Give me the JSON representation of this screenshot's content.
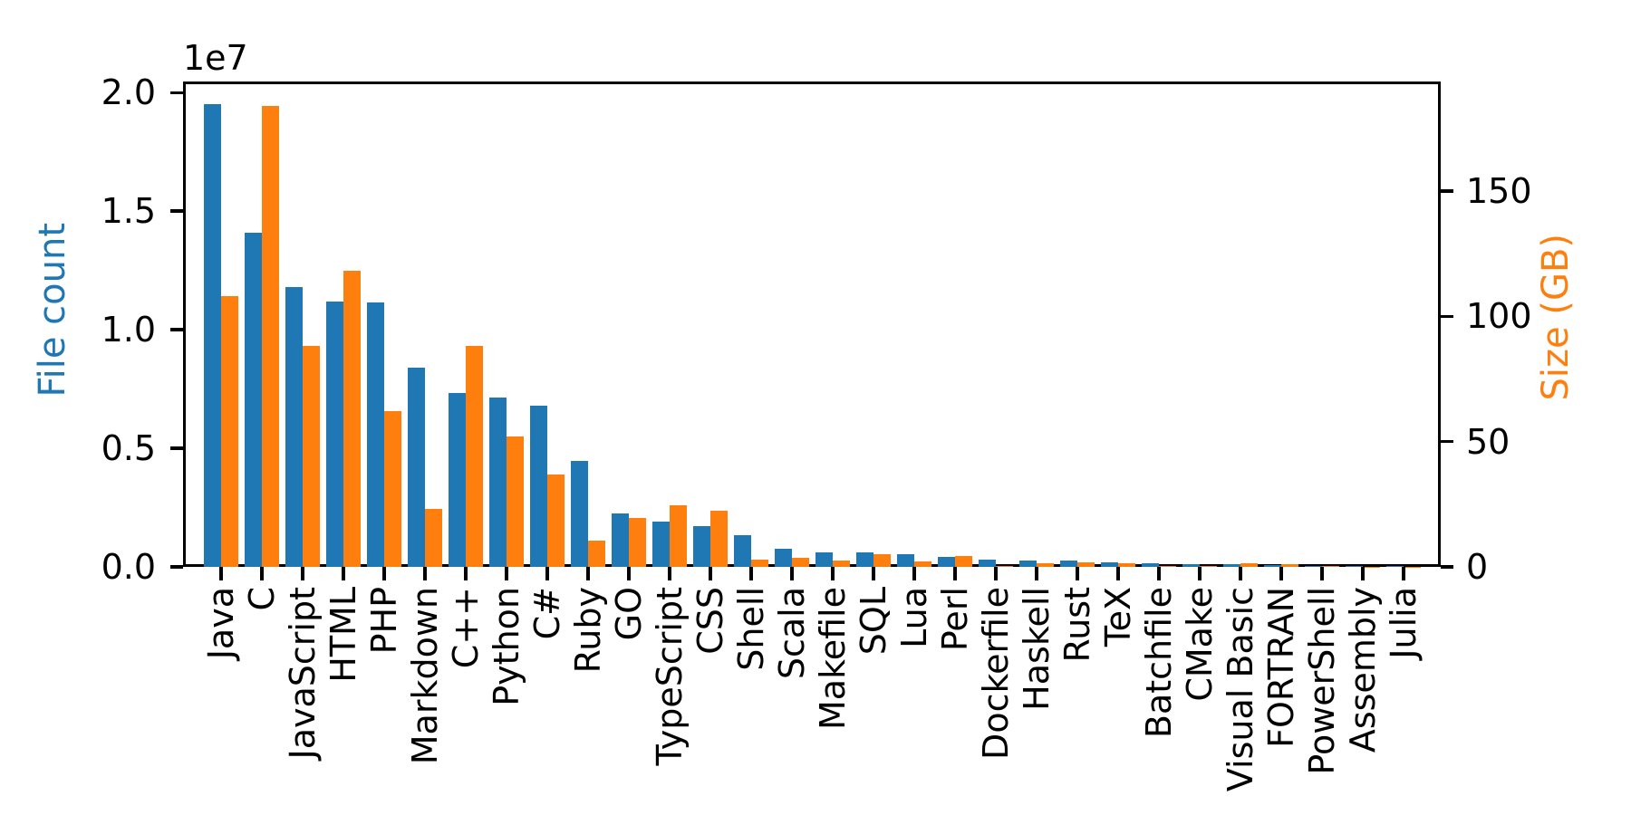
{
  "figure": {
    "title": "",
    "left_axis_label": "File count",
    "right_axis_label": "Size (GB)",
    "offset_label": "1e7",
    "colors": {
      "file_count_bar": "#1f77b4",
      "size_bar": "#ff7f0e",
      "axis": "#000000",
      "background": "#ffffff"
    }
  },
  "chart_data": {
    "type": "bar",
    "title": "",
    "grid": false,
    "legend": "none",
    "categories": [
      "Java",
      "C",
      "JavaScript",
      "HTML",
      "PHP",
      "Markdown",
      "C++",
      "Python",
      "C#",
      "Ruby",
      "GO",
      "TypeScript",
      "CSS",
      "Shell",
      "Scala",
      "Makefile",
      "SQL",
      "Lua",
      "Perl",
      "Dockerfile",
      "Haskell",
      "Rust",
      "TeX",
      "Batchfile",
      "CMake",
      "Visual Basic",
      "FORTRAN",
      "PowerShell",
      "Assembly",
      "Julia"
    ],
    "series": [
      {
        "name": "File count",
        "axis": "left",
        "color": "#1f77b4",
        "values": [
          19500000,
          14100000,
          11800000,
          11200000,
          11150000,
          8400000,
          7350000,
          7150000,
          6800000,
          4450000,
          2250000,
          1900000,
          1700000,
          1350000,
          780000,
          620000,
          620000,
          520000,
          430000,
          290000,
          280000,
          275000,
          185000,
          170000,
          105000,
          100000,
          80000,
          55000,
          35000,
          25000
        ]
      },
      {
        "name": "Size (GB)",
        "axis": "right",
        "color": "#ff7f0e",
        "values": [
          108,
          184,
          88,
          118,
          62,
          23,
          88,
          52,
          37,
          10.5,
          19.5,
          24.5,
          22.5,
          3,
          3.5,
          2.5,
          5.2,
          2.2,
          4.3,
          0.5,
          1.4,
          1.9,
          1.5,
          0.4,
          0.4,
          1.4,
          1.0,
          0.3,
          0.15,
          0.1
        ]
      }
    ],
    "left_ylabel": "File count",
    "right_ylabel": "Size (GB)",
    "left_offset_text": "1e7",
    "left_ylim": [
      0,
      20470000
    ],
    "right_ylim": [
      0,
      193.7
    ],
    "left_ticks": [
      0,
      5000000,
      10000000,
      15000000,
      20000000
    ],
    "left_tick_labels": [
      "0.0",
      "0.5",
      "1.0",
      "1.5",
      "2.0"
    ],
    "right_ticks": [
      0,
      50,
      100,
      150
    ],
    "right_tick_labels": [
      "0",
      "50",
      "100",
      "150"
    ]
  }
}
